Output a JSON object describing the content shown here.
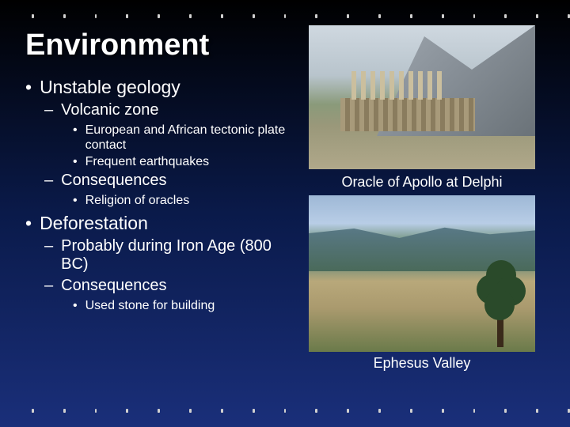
{
  "title": "Environment",
  "bullets": {
    "b1a": "Unstable geology",
    "b2a": "Volcanic zone",
    "b3a": "European and African tectonic plate contact",
    "b3b": "Frequent earthquakes",
    "b2b": "Consequences",
    "b3c": "Religion of oracles",
    "b1b": "Deforestation",
    "b2c": "Probably during Iron Age (800 BC)",
    "b2d": "Consequences",
    "b3d": "Used stone for building"
  },
  "captions": {
    "img1": "Oracle of Apollo at Delphi",
    "img2": "Ephesus Valley"
  },
  "marks": {
    "disc": "•",
    "dash": "–"
  },
  "style": {
    "bg_gradient": [
      "#000000",
      "#0a1a4a",
      "#1a2f7a"
    ],
    "title_color": "#ffffff",
    "text_color": "#ffffff",
    "dot_color": "#d0d0d0",
    "title_fontsize": 38,
    "b1_fontsize": 23,
    "b2_fontsize": 20,
    "b3_fontsize": 16,
    "caption_fontsize": 18,
    "dot_count": 18
  }
}
